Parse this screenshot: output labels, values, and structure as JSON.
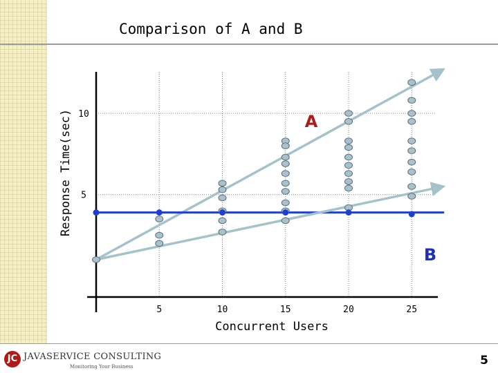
{
  "slide": {
    "title": "Comparison of A and B",
    "page_number": "5"
  },
  "footer": {
    "logo_mark": "JC",
    "logo_name": "JAVASERVICE CONSULTING",
    "logo_tagline": "Monitoring Your Business"
  },
  "colors": {
    "series_A": "#a4c2cc",
    "series_B": "#1f3fd0",
    "marker_fill": "#a9c1cd",
    "marker_stroke": "#5a6e7a",
    "series_A_label": "#b01a1a",
    "series_B_label": "#1f2fb8",
    "logo_red": "#b01a1a"
  },
  "chart_data": {
    "type": "scatter",
    "xlabel": "Concurrent Users",
    "ylabel": "Response Time(sec)",
    "x_ticks": [
      5,
      10,
      15,
      20,
      25
    ],
    "y_ticks": [
      5,
      10
    ],
    "xlim": [
      0,
      28
    ],
    "ylim": [
      -1.3,
      12
    ],
    "grid": true,
    "series": [
      {
        "name": "A",
        "points": [
          {
            "x": 0,
            "y": 1.0
          },
          {
            "x": 5,
            "y": 3.5
          },
          {
            "x": 5,
            "y": 2.5
          },
          {
            "x": 5,
            "y": 2.0
          },
          {
            "x": 10,
            "y": 5.7
          },
          {
            "x": 10,
            "y": 5.3
          },
          {
            "x": 10,
            "y": 4.8
          },
          {
            "x": 10,
            "y": 4.0
          },
          {
            "x": 10,
            "y": 3.4
          },
          {
            "x": 10,
            "y": 2.7
          },
          {
            "x": 15,
            "y": 8.3
          },
          {
            "x": 15,
            "y": 8.0
          },
          {
            "x": 15,
            "y": 7.3
          },
          {
            "x": 15,
            "y": 6.9
          },
          {
            "x": 15,
            "y": 6.3
          },
          {
            "x": 15,
            "y": 5.7
          },
          {
            "x": 15,
            "y": 5.2
          },
          {
            "x": 15,
            "y": 4.5
          },
          {
            "x": 15,
            "y": 4.0
          },
          {
            "x": 15,
            "y": 3.4
          },
          {
            "x": 20,
            "y": 10.0
          },
          {
            "x": 20,
            "y": 9.5
          },
          {
            "x": 20,
            "y": 8.3
          },
          {
            "x": 20,
            "y": 7.9
          },
          {
            "x": 20,
            "y": 7.3
          },
          {
            "x": 20,
            "y": 6.8
          },
          {
            "x": 20,
            "y": 6.3
          },
          {
            "x": 20,
            "y": 5.8
          },
          {
            "x": 20,
            "y": 5.4
          },
          {
            "x": 20,
            "y": 4.2
          },
          {
            "x": 25,
            "y": 11.9
          },
          {
            "x": 25,
            "y": 10.8
          },
          {
            "x": 25,
            "y": 10.0
          },
          {
            "x": 25,
            "y": 9.5
          },
          {
            "x": 25,
            "y": 8.3
          },
          {
            "x": 25,
            "y": 7.7
          },
          {
            "x": 25,
            "y": 7.0
          },
          {
            "x": 25,
            "y": 6.4
          },
          {
            "x": 25,
            "y": 5.5
          },
          {
            "x": 25,
            "y": 4.9
          }
        ],
        "trend": {
          "x": [
            0,
            27.5
          ],
          "y": [
            1.0,
            12.7
          ]
        }
      },
      {
        "name": "B",
        "points": [
          {
            "x": 0,
            "y": 3.9
          },
          {
            "x": 5,
            "y": 3.9
          },
          {
            "x": 10,
            "y": 3.9
          },
          {
            "x": 15,
            "y": 3.9
          },
          {
            "x": 20,
            "y": 3.9
          },
          {
            "x": 25,
            "y": 3.8
          }
        ],
        "trend": {
          "x": [
            0,
            27.5
          ],
          "y": [
            3.9,
            3.9
          ]
        }
      },
      {
        "name": "",
        "points": [],
        "trend": {
          "x": [
            0,
            27.5
          ],
          "y": [
            1.0,
            5.5
          ]
        }
      }
    ]
  }
}
